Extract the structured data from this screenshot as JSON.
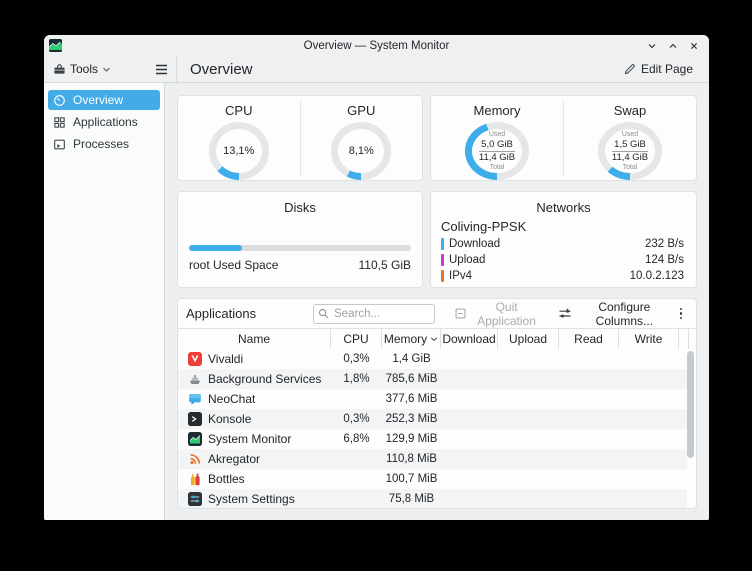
{
  "colors": {
    "accent": "#3daee9",
    "track": "#e4e6e8",
    "download": "#3daee9",
    "upload": "#cc37ce",
    "ipv4": "#e8752c"
  },
  "titlebar": {
    "title": "Overview — System Monitor"
  },
  "toolbar": {
    "tools_label": "Tools",
    "page_title": "Overview",
    "edit_page_label": "Edit Page"
  },
  "sidebar": {
    "items": [
      {
        "label": "Overview",
        "selected": true
      },
      {
        "label": "Applications",
        "selected": false
      },
      {
        "label": "Processes",
        "selected": false
      }
    ]
  },
  "cards": {
    "usage": {
      "cpu": {
        "title": "CPU",
        "value": "13,1%",
        "percent": 13.1
      },
      "gpu": {
        "title": "GPU",
        "value": "8,1%",
        "percent": 8.1
      }
    },
    "memswap": {
      "memory": {
        "title": "Memory",
        "used_label": "Used",
        "used": "5,0 GiB",
        "total": "11,4 GiB",
        "total_label": "Total",
        "percent": 43.9
      },
      "swap": {
        "title": "Swap",
        "used_label": "Used",
        "used": "1,5 GiB",
        "total": "11,4 GiB",
        "total_label": "Total",
        "percent": 13.2
      }
    },
    "disks": {
      "title": "Disks",
      "label": "root Used Space",
      "value": "110,5 GiB",
      "percent": 24
    },
    "networks": {
      "title": "Networks",
      "network_name": "Coliving-PPSK",
      "rows": [
        {
          "label": "Download",
          "value": "232 B/s"
        },
        {
          "label": "Upload",
          "value": "124 B/s"
        },
        {
          "label": "IPv4",
          "value": "10.0.2.123"
        }
      ]
    }
  },
  "apps": {
    "title": "Applications",
    "search_placeholder": "Search...",
    "quit_label": "Quit Application",
    "configure_label": "Configure Columns...",
    "columns": [
      "Name",
      "CPU",
      "Memory",
      "Download",
      "Upload",
      "Read",
      "Write"
    ],
    "sort_column": "Memory",
    "rows": [
      {
        "icon": "vivaldi",
        "name": "Vivaldi",
        "cpu": "0,3%",
        "memory": "1,4 GiB"
      },
      {
        "icon": "background-services",
        "name": "Background Services",
        "cpu": "1,8%",
        "memory": "785,6 MiB"
      },
      {
        "icon": "neochat",
        "name": "NeoChat",
        "cpu": "",
        "memory": "377,6 MiB"
      },
      {
        "icon": "konsole",
        "name": "Konsole",
        "cpu": "0,3%",
        "memory": "252,3 MiB"
      },
      {
        "icon": "system-monitor",
        "name": "System Monitor",
        "cpu": "6,8%",
        "memory": "129,9 MiB"
      },
      {
        "icon": "akregator",
        "name": "Akregator",
        "cpu": "",
        "memory": "110,8 MiB"
      },
      {
        "icon": "bottles",
        "name": "Bottles",
        "cpu": "",
        "memory": "100,7 MiB"
      },
      {
        "icon": "system-settings",
        "name": "System Settings",
        "cpu": "",
        "memory": "75,8 MiB"
      }
    ]
  }
}
